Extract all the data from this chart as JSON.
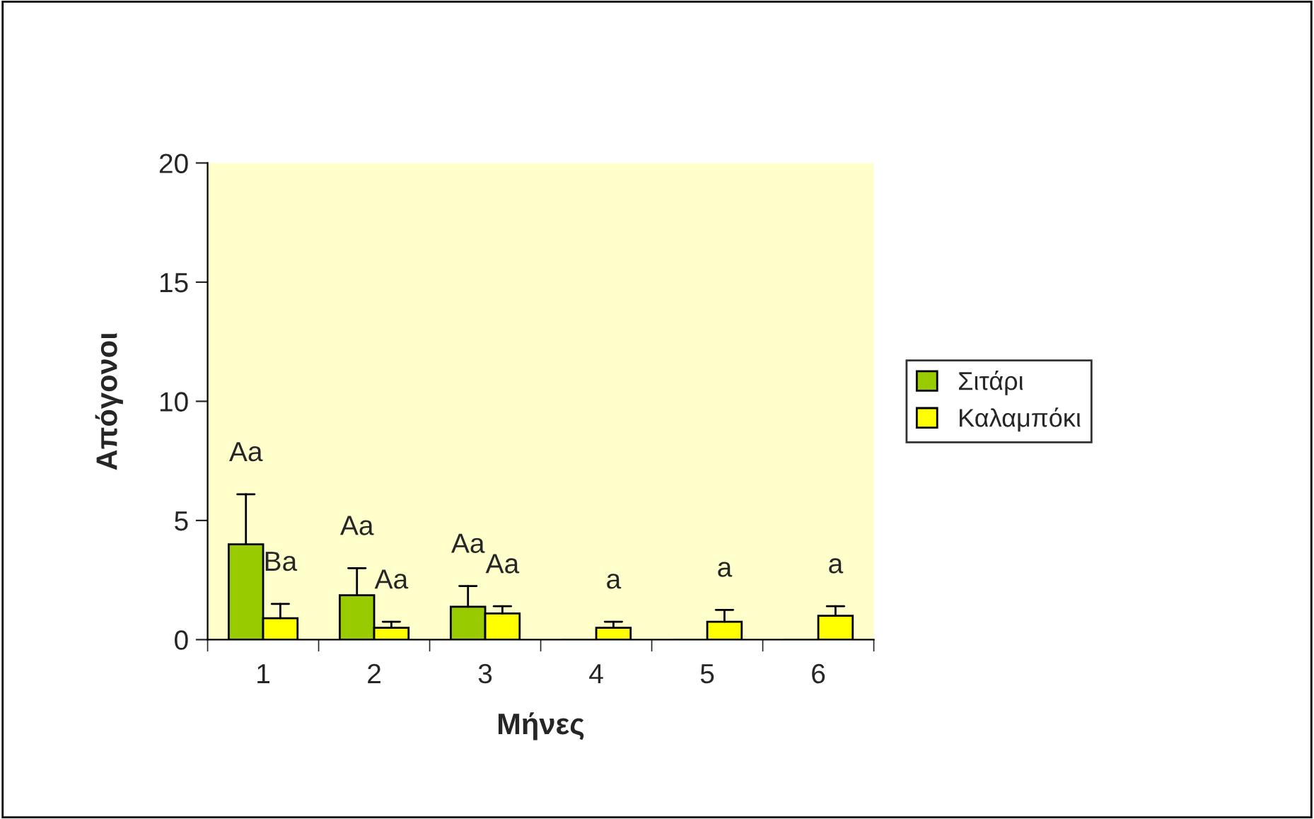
{
  "chart_data": {
    "type": "bar",
    "xlabel": "Μήνες",
    "ylabel": "Απόγονοι",
    "categories": [
      "1",
      "2",
      "3",
      "4",
      "5",
      "6"
    ],
    "series": [
      {
        "name": "Σιτάρι",
        "color": "#99cc00",
        "values": [
          4.0,
          1.86,
          1.38,
          0,
          0,
          0
        ],
        "errors": [
          [
            4.0,
            6.1
          ],
          [
            1.86,
            3.0
          ],
          [
            1.38,
            2.25
          ],
          null,
          null,
          null
        ]
      },
      {
        "name": "Καλαμπόκι",
        "color": "#ffff00",
        "values": [
          0.9,
          0.5,
          1.1,
          0.5,
          0.75,
          1.0
        ],
        "errors": [
          [
            0.9,
            1.5
          ],
          [
            0.5,
            0.75
          ],
          [
            1.1,
            1.4
          ],
          [
            0.5,
            0.75
          ],
          [
            0.75,
            1.25
          ],
          [
            1.0,
            1.4
          ]
        ]
      }
    ],
    "ylim": [
      0,
      20
    ],
    "yticks": [
      0,
      5,
      10,
      15,
      20
    ],
    "grid": false,
    "legend": "right",
    "annotations": [
      "Aa",
      "Ba",
      "Aa",
      "Aa",
      "Aa",
      "Aa",
      "a",
      "a",
      "a"
    ]
  }
}
